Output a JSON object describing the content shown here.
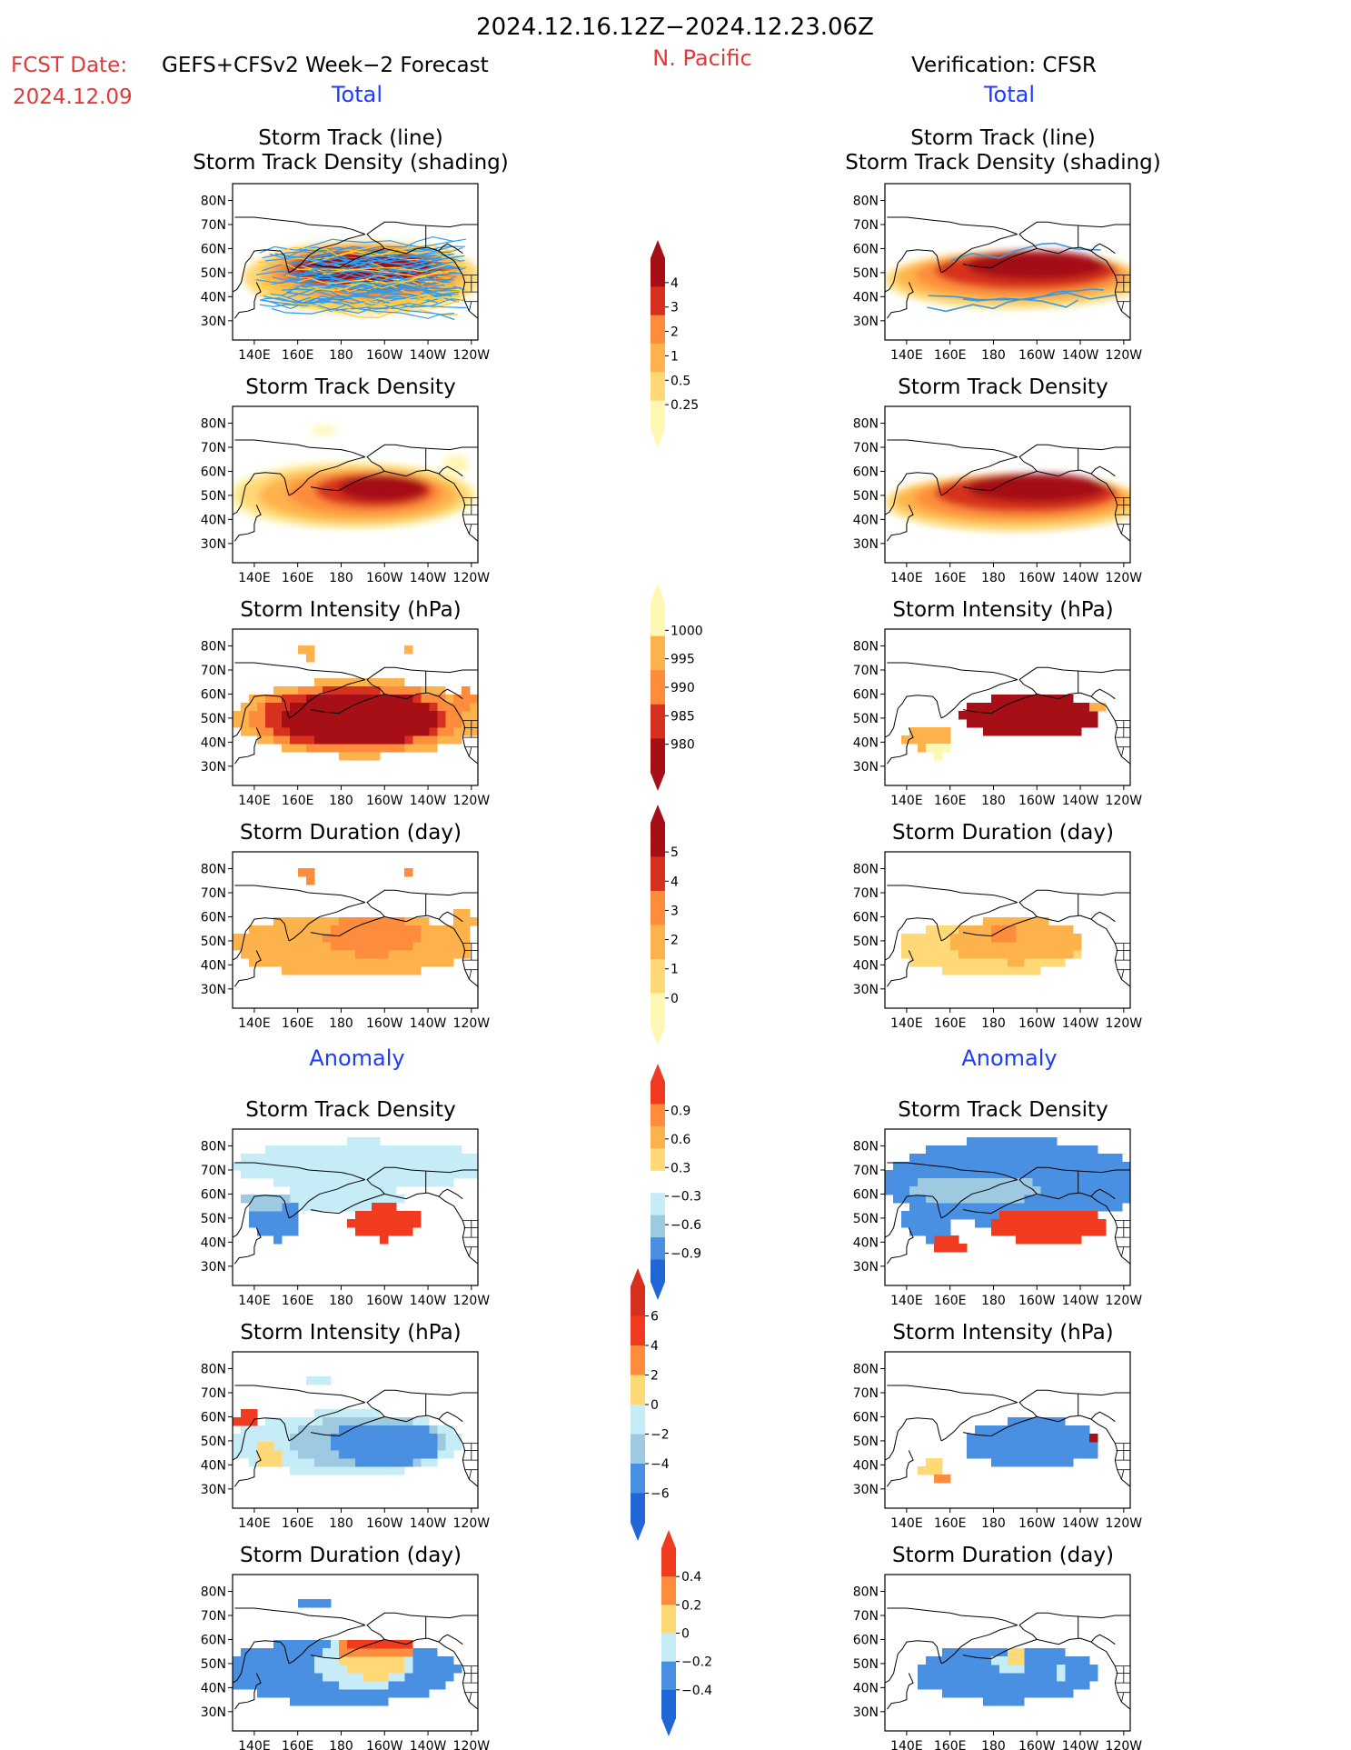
{
  "header": {
    "period": "2024.12.16.12Z−2024.12.23.06Z",
    "region": "N. Pacific",
    "fcst_label": "FCST Date:",
    "fcst_model": "GEFS+CFSv2 Week−2 Forecast",
    "fcst_date": "2024.12.09",
    "verif_label": "Verification: CFSR"
  },
  "sections": {
    "total": "Total",
    "anomaly": "Anomaly"
  },
  "map_axes": {
    "lat_ticks": [
      "80N",
      "70N",
      "60N",
      "50N",
      "40N",
      "30N"
    ],
    "lon_ticks": [
      "140E",
      "160E",
      "180",
      "160W",
      "140W",
      "120W"
    ]
  },
  "colors": {
    "yellow_light": "#fff7b3",
    "yellow": "#fed976",
    "orange_light": "#feb24c",
    "orange": "#fd8d3c",
    "orange_red": "#f03b20",
    "red": "#d7301f",
    "dark_red": "#a50f15",
    "blue_light": "#c6ecf7",
    "blue_mid": "#9ecae1",
    "blue": "#4a90e2",
    "blue_dark": "#2166d6",
    "track_blue": "#2d9bf0",
    "track_yellow": "#ffcc33"
  },
  "chart_data": [
    {
      "id": "fcst-total-track",
      "type": "heatmap",
      "title": "Storm Track (line)",
      "subtitle": "Storm Track Density (shading)",
      "column": "forecast",
      "section": "total"
    },
    {
      "id": "fcst-total-density",
      "type": "heatmap",
      "title": "Storm Track Density",
      "column": "forecast",
      "section": "total"
    },
    {
      "id": "fcst-total-intensity",
      "type": "heatmap",
      "title": "Storm Intensity (hPa)",
      "column": "forecast",
      "section": "total"
    },
    {
      "id": "fcst-total-duration",
      "type": "heatmap",
      "title": "Storm Duration (day)",
      "column": "forecast",
      "section": "total"
    },
    {
      "id": "fcst-anom-density",
      "type": "heatmap",
      "title": "Storm Track Density",
      "column": "forecast",
      "section": "anomaly"
    },
    {
      "id": "fcst-anom-intensity",
      "type": "heatmap",
      "title": "Storm Intensity (hPa)",
      "column": "forecast",
      "section": "anomaly"
    },
    {
      "id": "fcst-anom-duration",
      "type": "heatmap",
      "title": "Storm Duration (day)",
      "column": "forecast",
      "section": "anomaly"
    },
    {
      "id": "verif-total-track",
      "type": "heatmap",
      "title": "Storm Track (line)",
      "subtitle": "Storm Track Density (shading)",
      "column": "verification",
      "section": "total"
    },
    {
      "id": "verif-total-density",
      "type": "heatmap",
      "title": "Storm Track Density",
      "column": "verification",
      "section": "total"
    },
    {
      "id": "verif-total-intensity",
      "type": "heatmap",
      "title": "Storm Intensity (hPa)",
      "column": "verification",
      "section": "total"
    },
    {
      "id": "verif-total-duration",
      "type": "heatmap",
      "title": "Storm Duration (day)",
      "column": "verification",
      "section": "total"
    },
    {
      "id": "verif-anom-density",
      "type": "heatmap",
      "title": "Storm Track Density",
      "column": "verification",
      "section": "anomaly"
    },
    {
      "id": "verif-anom-intensity",
      "type": "heatmap",
      "title": "Storm Intensity (hPa)",
      "column": "verification",
      "section": "anomaly"
    },
    {
      "id": "verif-anom-duration",
      "type": "heatmap",
      "title": "Storm Duration (day)",
      "column": "verification",
      "section": "anomaly"
    }
  ],
  "colorbars": [
    {
      "id": "cb-density",
      "labels": [
        "4",
        "3",
        "2",
        "1",
        "0.5",
        "0.25"
      ],
      "colors": [
        "#a50f15",
        "#d7301f",
        "#fd8d3c",
        "#feb24c",
        "#fed976",
        "#fff7b3"
      ]
    },
    {
      "id": "cb-intensity",
      "labels": [
        "1000",
        "995",
        "990",
        "985",
        "980"
      ],
      "colors": [
        "#fff7b3",
        "#feb24c",
        "#fd8d3c",
        "#d7301f",
        "#a50f15"
      ]
    },
    {
      "id": "cb-duration",
      "labels": [
        "5",
        "4",
        "3",
        "2",
        "1",
        "0"
      ],
      "colors": [
        "#a50f15",
        "#d7301f",
        "#fd8d3c",
        "#feb24c",
        "#fed976",
        "#fff7b3"
      ]
    },
    {
      "id": "cb-anom-density",
      "labels": [
        "0.9",
        "0.6",
        "0.3",
        "−0.3",
        "−0.6",
        "−0.9"
      ],
      "colors": [
        "#f03b20",
        "#fd8d3c",
        "#feb24c",
        "#fed976",
        "#ffffff",
        "#c6ecf7",
        "#9ecae1",
        "#4a90e2",
        "#2166d6"
      ]
    },
    {
      "id": "cb-anom-intensity",
      "labels": [
        "6",
        "4",
        "2",
        "0",
        "−2",
        "−4",
        "−6"
      ],
      "colors": [
        "#d7301f",
        "#f03b20",
        "#fd8d3c",
        "#fed976",
        "#c6ecf7",
        "#9ecae1",
        "#4a90e2",
        "#2166d6"
      ]
    },
    {
      "id": "cb-anom-duration",
      "labels": [
        "0.4",
        "0.2",
        "0",
        "−0.2",
        "−0.4"
      ],
      "colors": [
        "#f03b20",
        "#fd8d3c",
        "#fed976",
        "#c6ecf7",
        "#4a90e2",
        "#2166d6"
      ]
    }
  ]
}
